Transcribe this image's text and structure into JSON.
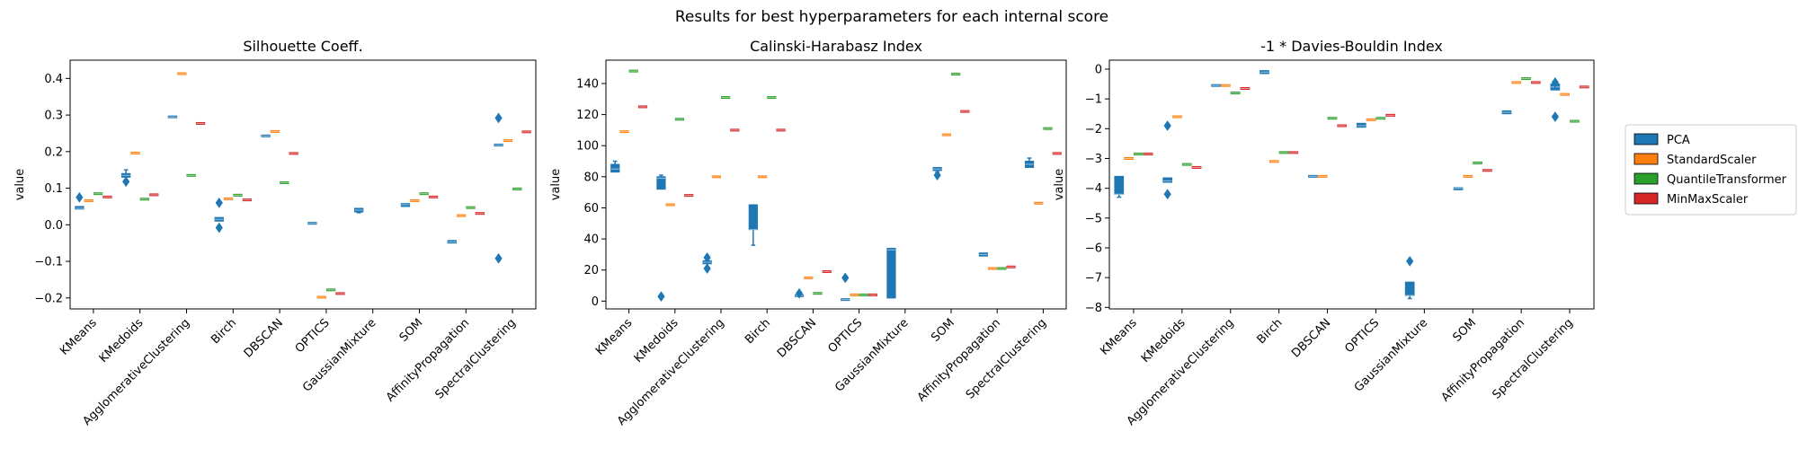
{
  "suptitle": "Results for best hyperparameters for each internal score",
  "chart_data": {
    "type": "box",
    "categories": [
      "KMeans",
      "KMedoids",
      "AgglomerativeClustering",
      "Birch",
      "DBSCAN",
      "OPTICS",
      "GaussianMixture",
      "SOM",
      "AffinityPropagation",
      "SpectralClustering"
    ],
    "series_names": [
      "PCA",
      "StandardScaler",
      "QuantileTransformer",
      "MinMaxScaler"
    ],
    "colors": {
      "PCA": "#1f77b4",
      "StandardScaler": "#ff7f0e",
      "QuantileTransformer": "#2ca02c",
      "MinMaxScaler": "#d62728"
    },
    "legend": {
      "position": "right",
      "entries": [
        "PCA",
        "StandardScaler",
        "QuantileTransformer",
        "MinMaxScaler"
      ]
    },
    "panels": [
      {
        "title": "Silhouette Coeff.",
        "ylabel": "value",
        "ylim": [
          -0.23,
          0.45
        ],
        "yticks": [
          -0.2,
          -0.1,
          0.0,
          0.1,
          0.2,
          0.3,
          0.4
        ],
        "ytick_labels": [
          "−0.2",
          "−0.1",
          "0.0",
          "0.1",
          "0.2",
          "0.3",
          "0.4"
        ],
        "series": [
          {
            "name": "PCA",
            "boxes": [
              {
                "category": "KMeans",
                "whislo": 0.043,
                "q1": 0.043,
                "med": 0.045,
                "q3": 0.05,
                "whishi": 0.05,
                "fliers": [
                  0.075
                ]
              },
              {
                "category": "KMedoids",
                "whislo": 0.13,
                "q1": 0.13,
                "med": 0.135,
                "q3": 0.14,
                "whishi": 0.15,
                "fliers": [
                  0.118
                ]
              },
              {
                "category": "AgglomerativeClustering",
                "whislo": 0.295,
                "q1": 0.295,
                "med": 0.295,
                "q3": 0.295,
                "whishi": 0.295,
                "fliers": []
              },
              {
                "category": "Birch",
                "whislo": 0.01,
                "q1": 0.01,
                "med": 0.015,
                "q3": 0.02,
                "whishi": 0.02,
                "fliers": [
                  0.06,
                  -0.008
                ]
              },
              {
                "category": "DBSCAN",
                "whislo": 0.243,
                "q1": 0.243,
                "med": 0.243,
                "q3": 0.243,
                "whishi": 0.243,
                "fliers": []
              },
              {
                "category": "OPTICS",
                "whislo": 0.003,
                "q1": 0.003,
                "med": 0.004,
                "q3": 0.005,
                "whishi": 0.005,
                "fliers": []
              },
              {
                "category": "GaussianMixture",
                "whislo": 0.033,
                "q1": 0.035,
                "med": 0.04,
                "q3": 0.045,
                "whishi": 0.045,
                "fliers": []
              },
              {
                "category": "SOM",
                "whislo": 0.05,
                "q1": 0.05,
                "med": 0.055,
                "q3": 0.058,
                "whishi": 0.058,
                "fliers": []
              },
              {
                "category": "AffinityPropagation",
                "whislo": -0.05,
                "q1": -0.05,
                "med": -0.047,
                "q3": -0.043,
                "whishi": -0.043,
                "fliers": []
              },
              {
                "category": "SpectralClustering",
                "whislo": 0.218,
                "q1": 0.218,
                "med": 0.218,
                "q3": 0.218,
                "whishi": 0.218,
                "fliers": [
                  0.292,
                  -0.092
                ]
              }
            ]
          },
          {
            "name": "StandardScaler",
            "boxes": [
              {
                "category": "KMeans",
                "med": 0.066
              },
              {
                "category": "KMedoids",
                "med": 0.196
              },
              {
                "category": "AgglomerativeClustering",
                "med": 0.413
              },
              {
                "category": "Birch",
                "med": 0.071
              },
              {
                "category": "DBSCAN",
                "med": 0.255
              },
              {
                "category": "OPTICS",
                "med": -0.198
              },
              {
                "category": "SOM",
                "med": 0.066
              },
              {
                "category": "AffinityPropagation",
                "med": 0.025
              },
              {
                "category": "SpectralClustering",
                "med": 0.23
              }
            ]
          },
          {
            "name": "QuantileTransformer",
            "boxes": [
              {
                "category": "KMeans",
                "med": 0.085
              },
              {
                "category": "KMedoids",
                "med": 0.07
              },
              {
                "category": "AgglomerativeClustering",
                "med": 0.135
              },
              {
                "category": "Birch",
                "med": 0.081
              },
              {
                "category": "DBSCAN",
                "med": 0.115
              },
              {
                "category": "OPTICS",
                "med": -0.178
              },
              {
                "category": "SOM",
                "med": 0.085
              },
              {
                "category": "AffinityPropagation",
                "med": 0.047
              },
              {
                "category": "SpectralClustering",
                "med": 0.098
              }
            ]
          },
          {
            "name": "MinMaxScaler",
            "boxes": [
              {
                "category": "KMeans",
                "med": 0.076
              },
              {
                "category": "KMedoids",
                "med": 0.082
              },
              {
                "category": "AgglomerativeClustering",
                "med": 0.277
              },
              {
                "category": "Birch",
                "med": 0.068
              },
              {
                "category": "DBSCAN",
                "med": 0.195
              },
              {
                "category": "OPTICS",
                "med": -0.188
              },
              {
                "category": "SOM",
                "med": 0.076
              },
              {
                "category": "AffinityPropagation",
                "med": 0.031
              },
              {
                "category": "SpectralClustering",
                "med": 0.254
              }
            ]
          }
        ]
      },
      {
        "title": "Calinski-Harabasz Index",
        "ylabel": "value",
        "ylim": [
          -5,
          155
        ],
        "yticks": [
          0,
          20,
          40,
          60,
          80,
          100,
          120,
          140
        ],
        "ytick_labels": [
          "0",
          "20",
          "40",
          "60",
          "80",
          "100",
          "120",
          "140"
        ],
        "series": [
          {
            "name": "PCA",
            "boxes": [
              {
                "category": "KMeans",
                "whislo": 83,
                "q1": 83,
                "med": 85,
                "q3": 88,
                "whishi": 90,
                "fliers": []
              },
              {
                "category": "KMedoids",
                "whislo": 72,
                "q1": 72,
                "med": 79,
                "q3": 80,
                "whishi": 81,
                "fliers": [
                  3
                ]
              },
              {
                "category": "AgglomerativeClustering",
                "whislo": 24,
                "q1": 24,
                "med": 25,
                "q3": 26,
                "whishi": 26,
                "fliers": [
                  28,
                  21
                ]
              },
              {
                "category": "Birch",
                "whislo": 36,
                "q1": 46,
                "med": 46,
                "q3": 62,
                "whishi": 62,
                "fliers": []
              },
              {
                "category": "DBSCAN",
                "whislo": 3,
                "q1": 3,
                "med": 3.5,
                "q3": 4,
                "whishi": 4,
                "fliers": [
                  5
                ]
              },
              {
                "category": "OPTICS",
                "whislo": 0.8,
                "q1": 0.8,
                "med": 1,
                "q3": 1.2,
                "whishi": 1.2,
                "fliers": [
                  15
                ]
              },
              {
                "category": "GaussianMixture",
                "whislo": 2,
                "q1": 2,
                "med": 33,
                "q3": 34,
                "whishi": 34,
                "fliers": []
              },
              {
                "category": "SOM",
                "whislo": 83,
                "q1": 84,
                "med": 85,
                "q3": 86,
                "whishi": 86,
                "fliers": [
                  81
                ]
              },
              {
                "category": "AffinityPropagation",
                "whislo": 29,
                "q1": 29,
                "med": 30,
                "q3": 31,
                "whishi": 31,
                "fliers": []
              },
              {
                "category": "SpectralClustering",
                "whislo": 86,
                "q1": 86,
                "med": 88,
                "q3": 90,
                "whishi": 92,
                "fliers": []
              }
            ]
          },
          {
            "name": "StandardScaler",
            "boxes": [
              {
                "category": "KMeans",
                "med": 109
              },
              {
                "category": "KMedoids",
                "med": 62
              },
              {
                "category": "AgglomerativeClustering",
                "med": 80
              },
              {
                "category": "Birch",
                "med": 80
              },
              {
                "category": "DBSCAN",
                "med": 15
              },
              {
                "category": "OPTICS",
                "med": 4
              },
              {
                "category": "SOM",
                "med": 107
              },
              {
                "category": "AffinityPropagation",
                "med": 21
              },
              {
                "category": "SpectralClustering",
                "med": 63
              }
            ]
          },
          {
            "name": "QuantileTransformer",
            "boxes": [
              {
                "category": "KMeans",
                "med": 148
              },
              {
                "category": "KMedoids",
                "med": 117
              },
              {
                "category": "AgglomerativeClustering",
                "med": 131
              },
              {
                "category": "Birch",
                "med": 131
              },
              {
                "category": "DBSCAN",
                "med": 5
              },
              {
                "category": "OPTICS",
                "med": 4
              },
              {
                "category": "SOM",
                "med": 146
              },
              {
                "category": "AffinityPropagation",
                "med": 21
              },
              {
                "category": "SpectralClustering",
                "med": 111
              }
            ]
          },
          {
            "name": "MinMaxScaler",
            "boxes": [
              {
                "category": "KMeans",
                "med": 125
              },
              {
                "category": "KMedoids",
                "med": 68
              },
              {
                "category": "AgglomerativeClustering",
                "med": 110
              },
              {
                "category": "Birch",
                "med": 110
              },
              {
                "category": "DBSCAN",
                "med": 19
              },
              {
                "category": "OPTICS",
                "med": 4
              },
              {
                "category": "SOM",
                "med": 122
              },
              {
                "category": "AffinityPropagation",
                "med": 22
              },
              {
                "category": "SpectralClustering",
                "med": 95
              }
            ]
          }
        ]
      },
      {
        "title": "-1 * Davies-Bouldin Index",
        "ylabel": "value",
        "ylim": [
          -8.05,
          0.3
        ],
        "yticks": [
          0,
          -1,
          -2,
          -3,
          -4,
          -5,
          -6,
          -7,
          -8
        ],
        "ytick_labels": [
          "0",
          "−1",
          "−2",
          "−3",
          "−4",
          "−5",
          "−6",
          "−7",
          "−8"
        ],
        "series": [
          {
            "name": "PCA",
            "boxes": [
              {
                "category": "KMeans",
                "whislo": -4.3,
                "q1": -4.2,
                "med": -4.2,
                "q3": -3.6,
                "whishi": -3.6,
                "fliers": []
              },
              {
                "category": "KMedoids",
                "whislo": -3.8,
                "q1": -3.8,
                "med": -3.75,
                "q3": -3.65,
                "whishi": -3.65,
                "fliers": [
                  -1.9,
                  -4.2
                ]
              },
              {
                "category": "AgglomerativeClustering",
                "whislo": -0.55,
                "q1": -0.55,
                "med": -0.55,
                "q3": -0.55,
                "whishi": -0.55,
                "fliers": []
              },
              {
                "category": "Birch",
                "whislo": -0.15,
                "q1": -0.15,
                "med": -0.1,
                "q3": -0.05,
                "whishi": -0.05,
                "fliers": []
              },
              {
                "category": "DBSCAN",
                "whislo": -3.6,
                "q1": -3.6,
                "med": -3.6,
                "q3": -3.6,
                "whishi": -3.6,
                "fliers": []
              },
              {
                "category": "OPTICS",
                "whislo": -1.95,
                "q1": -1.95,
                "med": -1.9,
                "q3": -1.82,
                "whishi": -1.82,
                "fliers": []
              },
              {
                "category": "GaussianMixture",
                "whislo": -7.7,
                "q1": -7.6,
                "med": -7.6,
                "q3": -7.15,
                "whishi": -7.15,
                "fliers": [
                  -6.45
                ]
              },
              {
                "category": "SOM",
                "whislo": -4.05,
                "q1": -4.05,
                "med": -4.0,
                "q3": -3.98,
                "whishi": -3.98,
                "fliers": []
              },
              {
                "category": "AffinityPropagation",
                "whislo": -1.5,
                "q1": -1.5,
                "med": -1.45,
                "q3": -1.4,
                "whishi": -1.4,
                "fliers": []
              },
              {
                "category": "SpectralClustering",
                "whislo": -0.7,
                "q1": -0.7,
                "med": -0.6,
                "q3": -0.5,
                "whishi": -0.5,
                "fliers": [
                  -1.6,
                  -0.45
                ]
              }
            ]
          },
          {
            "name": "StandardScaler",
            "boxes": [
              {
                "category": "KMeans",
                "med": -3.0
              },
              {
                "category": "KMedoids",
                "med": -1.6
              },
              {
                "category": "AgglomerativeClustering",
                "med": -0.55
              },
              {
                "category": "Birch",
                "med": -3.1
              },
              {
                "category": "DBSCAN",
                "med": -3.6
              },
              {
                "category": "OPTICS",
                "med": -1.7
              },
              {
                "category": "SOM",
                "med": -3.6
              },
              {
                "category": "AffinityPropagation",
                "med": -0.45
              },
              {
                "category": "SpectralClustering",
                "med": -0.85
              }
            ]
          },
          {
            "name": "QuantileTransformer",
            "boxes": [
              {
                "category": "KMeans",
                "med": -2.85
              },
              {
                "category": "KMedoids",
                "med": -3.2
              },
              {
                "category": "AgglomerativeClustering",
                "med": -0.8
              },
              {
                "category": "Birch",
                "med": -2.8
              },
              {
                "category": "DBSCAN",
                "med": -1.65
              },
              {
                "category": "OPTICS",
                "med": -1.65
              },
              {
                "category": "SOM",
                "med": -3.15
              },
              {
                "category": "AffinityPropagation",
                "med": -0.32
              },
              {
                "category": "SpectralClustering",
                "med": -1.75
              }
            ]
          },
          {
            "name": "MinMaxScaler",
            "boxes": [
              {
                "category": "KMeans",
                "med": -2.85
              },
              {
                "category": "KMedoids",
                "med": -3.3
              },
              {
                "category": "AgglomerativeClustering",
                "med": -0.65
              },
              {
                "category": "Birch",
                "med": -2.8
              },
              {
                "category": "DBSCAN",
                "med": -1.9
              },
              {
                "category": "OPTICS",
                "med": -1.55
              },
              {
                "category": "SOM",
                "med": -3.4
              },
              {
                "category": "AffinityPropagation",
                "med": -0.45
              },
              {
                "category": "SpectralClustering",
                "med": -0.6
              }
            ]
          }
        ]
      }
    ]
  }
}
